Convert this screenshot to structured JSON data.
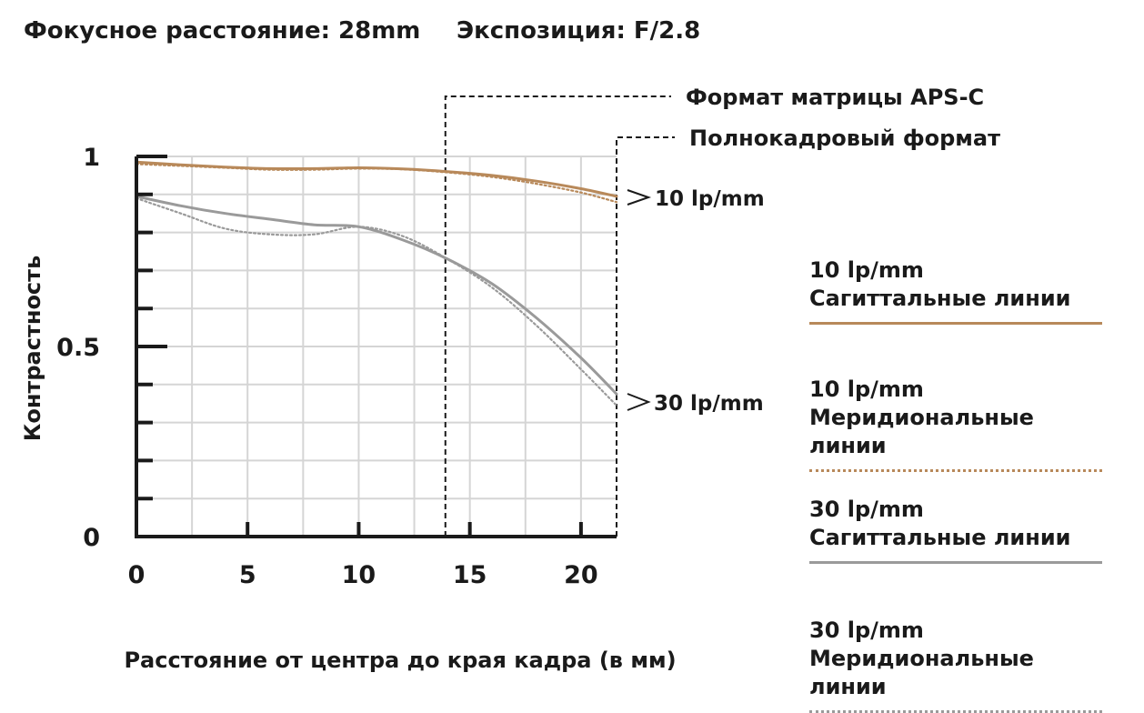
{
  "header": {
    "focal": "Фокусное расстояние: 28mm",
    "aperture": "Экспозиция: F/2.8"
  },
  "colors": {
    "tan": "#b8895a",
    "gray": "#9a9a9a",
    "grid": "#d5d5d5",
    "axis": "#1a1a1a"
  },
  "chart_data": {
    "type": "line",
    "title": "",
    "xlabel": "Расстояние от центра до края кадра (в мм)",
    "ylabel": "Контрастность",
    "xlim": [
      0,
      21.6
    ],
    "ylim": [
      0,
      1
    ],
    "x_ticks": [
      0,
      5,
      10,
      15,
      20
    ],
    "y_ticks": [
      {
        "value": 0,
        "label": "0"
      },
      {
        "value": 0.5,
        "label": "0.5"
      },
      {
        "value": 1,
        "label": "1"
      }
    ],
    "grid": true,
    "annotations": {
      "apsc": {
        "label": "Формат матрицы APS-C",
        "x": 13.9
      },
      "fullframe": {
        "label": "Полнокадровый формат",
        "x": 21.6
      },
      "lp10": "10 lp/mm",
      "lp30": "30 lp/mm"
    },
    "series": [
      {
        "key": "s10",
        "style": "solid",
        "color": "#b8895a",
        "x": [
          0,
          2,
          4,
          6,
          8,
          10,
          12,
          14,
          16,
          18,
          20,
          21.6
        ],
        "y": [
          0.985,
          0.978,
          0.972,
          0.968,
          0.968,
          0.97,
          0.967,
          0.96,
          0.95,
          0.935,
          0.915,
          0.895
        ]
      },
      {
        "key": "m10",
        "style": "dotted",
        "color": "#b8895a",
        "x": [
          0,
          2,
          4,
          6,
          8,
          10,
          12,
          14,
          16,
          18,
          20,
          21.6
        ],
        "y": [
          0.98,
          0.975,
          0.97,
          0.965,
          0.965,
          0.968,
          0.966,
          0.958,
          0.946,
          0.928,
          0.905,
          0.88
        ]
      },
      {
        "key": "s30",
        "style": "solid",
        "color": "#9a9a9a",
        "x": [
          0,
          2,
          4,
          6,
          8,
          10,
          12,
          14,
          16,
          18,
          20,
          21.6
        ],
        "y": [
          0.895,
          0.87,
          0.85,
          0.835,
          0.82,
          0.815,
          0.78,
          0.73,
          0.665,
          0.575,
          0.47,
          0.375
        ]
      },
      {
        "key": "m30",
        "style": "dotted",
        "color": "#9a9a9a",
        "x": [
          0,
          2,
          4,
          6,
          8,
          10,
          12,
          14,
          16,
          18,
          20,
          21.6
        ],
        "y": [
          0.89,
          0.85,
          0.81,
          0.795,
          0.795,
          0.815,
          0.79,
          0.73,
          0.655,
          0.555,
          0.44,
          0.345
        ]
      }
    ]
  },
  "legend": [
    {
      "key": "s10",
      "line1": "10 lp/mm",
      "line2": "Сагиттальные линии",
      "color": "#b8895a",
      "style": "solid"
    },
    {
      "key": "m10",
      "line1": "10 lp/mm",
      "line2": "Меридиональные линии",
      "color": "#b8895a",
      "style": "dotted"
    },
    {
      "key": "s30",
      "line1": "30 lp/mm",
      "line2": "Сагиттальные линии",
      "color": "#9a9a9a",
      "style": "solid"
    },
    {
      "key": "m30",
      "line1": "30 lp/mm",
      "line2": "Меридиональные линии",
      "color": "#9a9a9a",
      "style": "dotted"
    }
  ]
}
